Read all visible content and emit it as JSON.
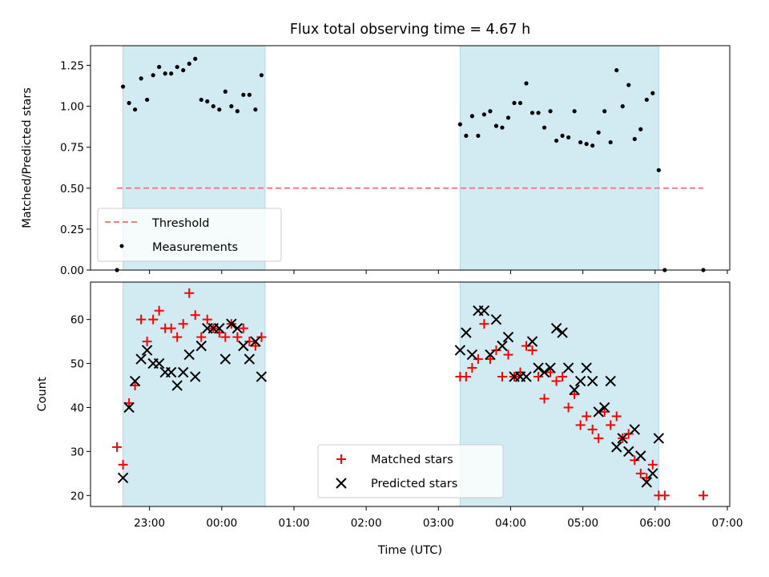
{
  "chart_data": [
    {
      "type": "scatter",
      "title": "Flux total observing time = 4.67 h",
      "xlabel": "",
      "ylabel": "Matched/Predicted stars",
      "ylim": [
        0,
        1.37
      ],
      "yticks": [
        "0.00",
        "0.25",
        "0.50",
        "0.75",
        "1.00",
        "1.25"
      ],
      "ytick_values": [
        0,
        0.25,
        0.5,
        0.75,
        1.0,
        1.25
      ],
      "shaded_spans": [
        [
          "22:38",
          "00:36"
        ],
        [
          "03:18",
          "06:03"
        ]
      ],
      "shade_color": "#add8e6",
      "threshold": {
        "name": "Threshold",
        "value": 0.5,
        "x_range": [
          "22:33",
          "06:40"
        ],
        "color": "#f08080"
      },
      "series": [
        {
          "name": "Measurements",
          "color": "#000000",
          "marker": "dot",
          "points": [
            [
              "22:33",
              0.0
            ],
            [
              "22:38",
              1.12
            ],
            [
              "22:43",
              1.02
            ],
            [
              "22:48",
              0.98
            ],
            [
              "22:53",
              1.17
            ],
            [
              "22:58",
              1.04
            ],
            [
              "23:03",
              1.19
            ],
            [
              "23:08",
              1.24
            ],
            [
              "23:13",
              1.2
            ],
            [
              "23:18",
              1.2
            ],
            [
              "23:23",
              1.24
            ],
            [
              "23:28",
              1.22
            ],
            [
              "23:33",
              1.26
            ],
            [
              "23:38",
              1.29
            ],
            [
              "23:43",
              1.04
            ],
            [
              "23:48",
              1.03
            ],
            [
              "23:53",
              1.0
            ],
            [
              "23:58",
              0.98
            ],
            [
              "00:03",
              1.09
            ],
            [
              "00:08",
              1.0
            ],
            [
              "00:13",
              0.97
            ],
            [
              "00:18",
              1.07
            ],
            [
              "00:23",
              1.07
            ],
            [
              "00:28",
              0.98
            ],
            [
              "00:33",
              1.19
            ],
            [
              "03:18",
              0.89
            ],
            [
              "03:23",
              0.82
            ],
            [
              "03:28",
              0.94
            ],
            [
              "03:33",
              0.82
            ],
            [
              "03:38",
              0.95
            ],
            [
              "03:43",
              0.97
            ],
            [
              "03:48",
              0.88
            ],
            [
              "03:53",
              0.87
            ],
            [
              "03:58",
              0.93
            ],
            [
              "04:03",
              1.02
            ],
            [
              "04:08",
              1.02
            ],
            [
              "04:13",
              1.14
            ],
            [
              "04:18",
              0.96
            ],
            [
              "04:23",
              0.96
            ],
            [
              "04:28",
              0.87
            ],
            [
              "04:33",
              0.97
            ],
            [
              "04:38",
              0.79
            ],
            [
              "04:43",
              0.82
            ],
            [
              "04:48",
              0.81
            ],
            [
              "04:53",
              0.97
            ],
            [
              "04:58",
              0.78
            ],
            [
              "05:03",
              0.77
            ],
            [
              "05:08",
              0.76
            ],
            [
              "05:13",
              0.84
            ],
            [
              "05:18",
              0.97
            ],
            [
              "05:23",
              0.78
            ],
            [
              "05:28",
              1.22
            ],
            [
              "05:33",
              1.0
            ],
            [
              "05:38",
              1.13
            ],
            [
              "05:43",
              0.8
            ],
            [
              "05:48",
              0.86
            ],
            [
              "05:53",
              1.04
            ],
            [
              "05:58",
              1.08
            ],
            [
              "06:03",
              0.61
            ],
            [
              "06:08",
              0.0
            ],
            [
              "06:40",
              0.0
            ]
          ]
        }
      ],
      "legend": {
        "location": "lower-left",
        "entries": [
          "Threshold",
          "Measurements"
        ]
      }
    },
    {
      "type": "scatter",
      "title": "",
      "xlabel": "Time (UTC)",
      "ylabel": "Count",
      "ylim": [
        17.5,
        68.5
      ],
      "yticks": [
        "20",
        "30",
        "40",
        "50",
        "60"
      ],
      "ytick_values": [
        20,
        30,
        40,
        50,
        60
      ],
      "xlim": [
        "22:11",
        "07:02"
      ],
      "xticks": [
        "23:00",
        "00:00",
        "01:00",
        "02:00",
        "03:00",
        "04:00",
        "05:00",
        "06:00",
        "07:00"
      ],
      "shaded_spans": [
        [
          "22:38",
          "00:36"
        ],
        [
          "03:18",
          "06:03"
        ]
      ],
      "shade_color": "#add8e6",
      "series": [
        {
          "name": "Matched stars",
          "color": "#ff0000",
          "marker": "plus",
          "points": [
            [
              "22:33",
              31
            ],
            [
              "22:38",
              27
            ],
            [
              "22:43",
              41
            ],
            [
              "22:48",
              45
            ],
            [
              "22:53",
              60
            ],
            [
              "22:58",
              55
            ],
            [
              "23:03",
              60
            ],
            [
              "23:08",
              62
            ],
            [
              "23:13",
              58
            ],
            [
              "23:18",
              58
            ],
            [
              "23:23",
              56
            ],
            [
              "23:28",
              59
            ],
            [
              "23:33",
              66
            ],
            [
              "23:38",
              61
            ],
            [
              "23:43",
              56
            ],
            [
              "23:48",
              60
            ],
            [
              "23:53",
              58
            ],
            [
              "23:58",
              57
            ],
            [
              "00:03",
              56
            ],
            [
              "00:08",
              59
            ],
            [
              "00:13",
              56
            ],
            [
              "00:18",
              58
            ],
            [
              "00:23",
              55
            ],
            [
              "00:28",
              54
            ],
            [
              "00:33",
              56
            ],
            [
              "03:18",
              47
            ],
            [
              "03:23",
              47
            ],
            [
              "03:28",
              49
            ],
            [
              "03:33",
              51
            ],
            [
              "03:38",
              59
            ],
            [
              "03:43",
              51
            ],
            [
              "03:48",
              53
            ],
            [
              "03:53",
              47
            ],
            [
              "03:58",
              52
            ],
            [
              "04:03",
              47
            ],
            [
              "04:08",
              48
            ],
            [
              "04:13",
              54
            ],
            [
              "04:18",
              53
            ],
            [
              "04:23",
              47
            ],
            [
              "04:28",
              42
            ],
            [
              "04:33",
              48
            ],
            [
              "04:38",
              46
            ],
            [
              "04:43",
              47
            ],
            [
              "04:48",
              40
            ],
            [
              "04:53",
              43
            ],
            [
              "04:58",
              36
            ],
            [
              "05:03",
              38
            ],
            [
              "05:08",
              35
            ],
            [
              "05:13",
              33
            ],
            [
              "05:18",
              39
            ],
            [
              "05:23",
              36
            ],
            [
              "05:28",
              38
            ],
            [
              "05:33",
              33
            ],
            [
              "05:38",
              34
            ],
            [
              "05:43",
              28
            ],
            [
              "05:48",
              25
            ],
            [
              "05:53",
              24
            ],
            [
              "05:58",
              27
            ],
            [
              "06:03",
              20
            ],
            [
              "06:08",
              20
            ],
            [
              "06:40",
              20
            ]
          ]
        },
        {
          "name": "Predicted stars",
          "color": "#000000",
          "marker": "x",
          "points": [
            [
              "22:38",
              24
            ],
            [
              "22:43",
              40
            ],
            [
              "22:48",
              46
            ],
            [
              "22:53",
              51
            ],
            [
              "22:58",
              53
            ],
            [
              "23:03",
              50
            ],
            [
              "23:08",
              50
            ],
            [
              "23:13",
              48
            ],
            [
              "23:18",
              48
            ],
            [
              "23:23",
              45
            ],
            [
              "23:28",
              48
            ],
            [
              "23:33",
              52
            ],
            [
              "23:38",
              47
            ],
            [
              "23:43",
              54
            ],
            [
              "23:48",
              58
            ],
            [
              "23:53",
              58
            ],
            [
              "23:58",
              58
            ],
            [
              "00:03",
              51
            ],
            [
              "00:08",
              59
            ],
            [
              "00:13",
              58
            ],
            [
              "00:18",
              54
            ],
            [
              "00:23",
              51
            ],
            [
              "00:28",
              55
            ],
            [
              "00:33",
              47
            ],
            [
              "03:18",
              53
            ],
            [
              "03:23",
              57
            ],
            [
              "03:28",
              52
            ],
            [
              "03:33",
              62
            ],
            [
              "03:38",
              62
            ],
            [
              "03:43",
              52
            ],
            [
              "03:48",
              60
            ],
            [
              "03:53",
              54
            ],
            [
              "03:58",
              56
            ],
            [
              "04:03",
              47
            ],
            [
              "04:08",
              47
            ],
            [
              "04:13",
              47
            ],
            [
              "04:18",
              55
            ],
            [
              "04:23",
              49
            ],
            [
              "04:28",
              48
            ],
            [
              "04:33",
              49
            ],
            [
              "04:38",
              58
            ],
            [
              "04:43",
              57
            ],
            [
              "04:48",
              49
            ],
            [
              "04:53",
              44
            ],
            [
              "04:58",
              46
            ],
            [
              "05:03",
              49
            ],
            [
              "05:08",
              46
            ],
            [
              "05:13",
              39
            ],
            [
              "05:18",
              40
            ],
            [
              "05:23",
              46
            ],
            [
              "05:28",
              31
            ],
            [
              "05:33",
              33
            ],
            [
              "05:38",
              30
            ],
            [
              "05:43",
              35
            ],
            [
              "05:48",
              29
            ],
            [
              "05:53",
              23
            ],
            [
              "05:58",
              25
            ],
            [
              "06:03",
              33
            ]
          ]
        }
      ],
      "legend": {
        "location": "lower-center",
        "entries": [
          "Matched stars",
          "Predicted stars"
        ]
      }
    }
  ]
}
